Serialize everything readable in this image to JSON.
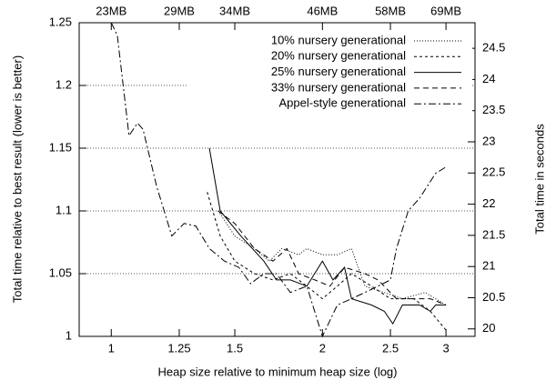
{
  "chart_data": {
    "type": "line",
    "xlabel": "Heap size relative to minimum heap size (log)",
    "ylabel": "Total time relative to best result (lower is better)",
    "y2label": "Total time in seconds",
    "xlog": true,
    "grid": true,
    "legend": "top-right",
    "xlim": [
      0.9,
      3.3
    ],
    "xticks": [
      1,
      1.25,
      1.5,
      2,
      2.5,
      3
    ],
    "x2ticks": [
      {
        "value": 1,
        "label": "23MB"
      },
      {
        "value": 1.25,
        "label": "29MB"
      },
      {
        "value": 1.5,
        "label": "34MB"
      },
      {
        "value": 2,
        "label": "46MB"
      },
      {
        "value": 2.5,
        "label": "58MB"
      },
      {
        "value": 3,
        "label": "69MB"
      }
    ],
    "ylim": [
      1,
      1.25
    ],
    "yticks": [
      1,
      1.05,
      1.1,
      1.15,
      1.2,
      1.25
    ],
    "y2lim": [
      19.88,
      24.91
    ],
    "y2ticks": [
      20,
      20.5,
      21,
      21.5,
      22,
      22.5,
      23,
      23.5,
      24,
      24.5
    ],
    "series": [
      {
        "name": "10% nursery generational",
        "color": "#000000",
        "dash": "1,2",
        "x": [
          1.42,
          1.5,
          1.6,
          1.68,
          1.75,
          1.85,
          1.9,
          2.0,
          2.1,
          2.2,
          2.3,
          2.45,
          2.6,
          2.8,
          3.0
        ],
        "values": [
          1.1,
          1.08,
          1.07,
          1.06,
          1.07,
          1.065,
          1.07,
          1.065,
          1.065,
          1.07,
          1.04,
          1.035,
          1.03,
          1.035,
          1.025
        ]
      },
      {
        "name": "20% nursery generational",
        "color": "#000000",
        "dash": "3,3",
        "x": [
          1.37,
          1.43,
          1.5,
          1.6,
          1.7,
          1.8,
          1.9,
          2.0,
          2.1,
          2.2,
          2.35,
          2.5,
          2.7,
          2.85,
          3.0
        ],
        "values": [
          1.115,
          1.08,
          1.06,
          1.05,
          1.045,
          1.05,
          1.04,
          1.03,
          1.04,
          1.05,
          1.04,
          1.03,
          1.03,
          1.02,
          1.005
        ]
      },
      {
        "name": "25% nursery generational",
        "color": "#000000",
        "dash": "none",
        "x": [
          1.38,
          1.43,
          1.53,
          1.65,
          1.72,
          1.8,
          1.9,
          2.0,
          2.07,
          2.15,
          2.2,
          2.35,
          2.45,
          2.52,
          2.6,
          2.75,
          2.85,
          2.9,
          3.0
        ],
        "values": [
          1.15,
          1.1,
          1.08,
          1.06,
          1.045,
          1.045,
          1.04,
          1.06,
          1.045,
          1.055,
          1.03,
          1.025,
          1.02,
          1.01,
          1.025,
          1.025,
          1.02,
          1.025,
          1.025
        ]
      },
      {
        "name": "33% nursery generational",
        "color": "#000000",
        "dash": "6,4",
        "x": [
          1.42,
          1.5,
          1.6,
          1.7,
          1.78,
          1.85,
          1.95,
          2.05,
          2.15,
          2.3,
          2.4,
          2.55,
          2.7,
          2.85,
          3.0
        ],
        "values": [
          1.1,
          1.09,
          1.07,
          1.06,
          1.07,
          1.05,
          1.045,
          1.04,
          1.055,
          1.05,
          1.045,
          1.03,
          1.03,
          1.03,
          1.025
        ]
      },
      {
        "name": "Appel-style generational",
        "color": "#000000",
        "dash": "8,3,2,3",
        "x": [
          1.0,
          1.02,
          1.06,
          1.09,
          1.11,
          1.16,
          1.22,
          1.27,
          1.32,
          1.38,
          1.45,
          1.52,
          1.58,
          1.65,
          1.72,
          1.8,
          1.9,
          2.0,
          2.1,
          2.2,
          2.3,
          2.4,
          2.5,
          2.55,
          2.65,
          2.75,
          2.9,
          3.0
        ],
        "values": [
          1.25,
          1.24,
          1.16,
          1.17,
          1.165,
          1.12,
          1.08,
          1.09,
          1.088,
          1.07,
          1.06,
          1.055,
          1.042,
          1.05,
          1.05,
          1.035,
          1.04,
          1.0,
          1.025,
          1.03,
          1.035,
          1.04,
          1.045,
          1.07,
          1.1,
          1.11,
          1.13,
          1.135
        ]
      }
    ]
  }
}
